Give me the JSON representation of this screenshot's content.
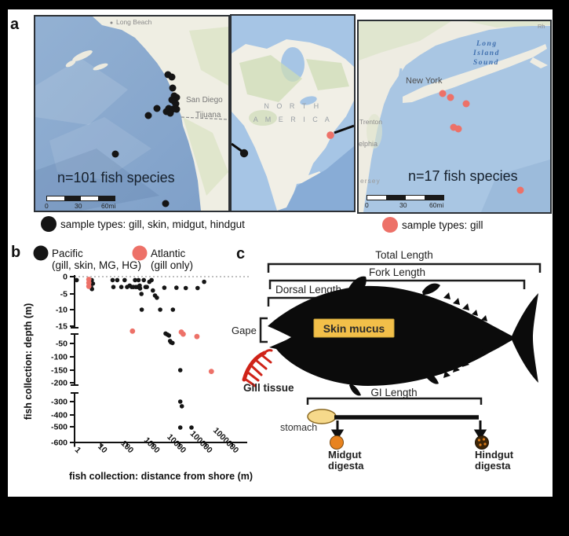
{
  "figure": {
    "panel_a_label": "a",
    "panel_b_label": "b",
    "panel_c_label": "c"
  },
  "maps": {
    "pacific": {
      "annotation": "n=101 fish species",
      "legend_text": "sample types: gill, skin, midgut, hindgut",
      "cities": {
        "long_beach": "Long Beach",
        "san_diego": "San Diego",
        "tijuana": "Tijuana"
      },
      "scale": {
        "zero": "0",
        "mid": "30",
        "end": "60mi"
      },
      "dot_color": "#151515",
      "sample_dots": [
        [
          169,
          74
        ],
        [
          174,
          77
        ],
        [
          175,
          91
        ],
        [
          177,
          101
        ],
        [
          180,
          103
        ],
        [
          174,
          106
        ],
        [
          177,
          108
        ],
        [
          179,
          111
        ],
        [
          170,
          117
        ],
        [
          175,
          118
        ],
        [
          180,
          118
        ],
        [
          167,
          121
        ],
        [
          172,
          123
        ],
        [
          155,
          117
        ],
        [
          144,
          126
        ],
        [
          102,
          175
        ],
        [
          166,
          238
        ]
      ]
    },
    "overview": {
      "label_line1": "N O R T H",
      "label_line2": "A M E R I C A"
    },
    "atlantic": {
      "annotation": "n=17 fish species",
      "legend_text": "sample types: gill",
      "water_label_1": "Long",
      "water_label_2": "Island",
      "water_label_3": "Sound",
      "cities": {
        "new_york": "New York",
        "trenton": "Trenton",
        "philadelphia": "elphia",
        "jersey": "ersey",
        "rhode": "Rh"
      },
      "scale": {
        "zero": "0",
        "mid": "30",
        "end": "60mi"
      },
      "dot_color": "#ed7168",
      "sample_dots": [
        [
          107,
          92
        ],
        [
          117,
          97
        ],
        [
          137,
          105
        ],
        [
          121,
          135
        ],
        [
          127,
          137
        ],
        [
          206,
          215
        ]
      ]
    }
  },
  "chart_data": {
    "type": "scatter",
    "xlabel": "fish collection: distance from shore (m)",
    "ylabel": "fish collection: depth (m)",
    "x_scale": "log",
    "x_ticks": [
      1,
      10,
      100,
      1000,
      10000,
      100000,
      1000000
    ],
    "y_segments": [
      [
        0,
        -5,
        -10,
        -15
      ],
      [
        -50,
        -100,
        -150,
        -200
      ],
      [
        -300,
        -400,
        -500,
        -600
      ]
    ],
    "zero_line": "dotted",
    "legend": [
      {
        "name": "Pacific",
        "sub": "(gill, skin, MG, HG)",
        "color": "#151515"
      },
      {
        "name": "Atlantic",
        "sub": "(gill only)",
        "color": "#ed7168"
      }
    ],
    "series": [
      {
        "name": "Pacific (gill, skin, MG, HG)",
        "color": "#151515",
        "r": 2.8,
        "points": [
          [
            1.2,
            -1
          ],
          [
            3.8,
            -1
          ],
          [
            4.5,
            -1
          ],
          [
            4.2,
            -3
          ],
          [
            4.6,
            -3.6
          ],
          [
            5,
            -2
          ],
          [
            28,
            -1
          ],
          [
            30,
            -3
          ],
          [
            42,
            -1
          ],
          [
            60,
            -3
          ],
          [
            80,
            -1
          ],
          [
            100,
            -3
          ],
          [
            125,
            -2.6
          ],
          [
            150,
            -3
          ],
          [
            175,
            -3
          ],
          [
            200,
            -1
          ],
          [
            215,
            -3
          ],
          [
            250,
            -3
          ],
          [
            270,
            -1
          ],
          [
            300,
            -2.6
          ],
          [
            310,
            -3.4
          ],
          [
            350,
            -5
          ],
          [
            430,
            -1
          ],
          [
            500,
            -3
          ],
          [
            560,
            -3
          ],
          [
            700,
            -1.5
          ],
          [
            850,
            -1
          ],
          [
            950,
            -4
          ],
          [
            1150,
            -5.5
          ],
          [
            1350,
            -6.2
          ],
          [
            360,
            -10
          ],
          [
            1800,
            -10
          ],
          [
            5500,
            -10
          ],
          [
            2600,
            -3.2
          ],
          [
            7500,
            -3.2
          ],
          [
            17000,
            -3.3
          ],
          [
            48000,
            -3.3
          ],
          [
            85000,
            -1.5
          ],
          [
            2900,
            -30
          ],
          [
            3400,
            -32
          ],
          [
            3900,
            -34
          ],
          [
            4300,
            -45
          ],
          [
            4700,
            -48
          ],
          [
            5300,
            -49
          ],
          [
            10500,
            -150
          ],
          [
            10500,
            -300
          ],
          [
            12000,
            -335
          ],
          [
            10500,
            -505
          ],
          [
            28000,
            -505
          ]
        ]
      },
      {
        "name": "Atlantic (gill only)",
        "color": "#ed7168",
        "r": 3.4,
        "points": [
          [
            3.5,
            -0.8
          ],
          [
            3.5,
            -1.8
          ],
          [
            3.5,
            -2.8
          ],
          [
            160,
            -25
          ],
          [
            11500,
            -27
          ],
          [
            13500,
            -31
          ],
          [
            45000,
            -36
          ],
          [
            160000,
            -155
          ]
        ]
      }
    ]
  },
  "diagram": {
    "total_length": "Total Length",
    "fork_length": "Fork Length",
    "dorsal_length": "Dorsal Length",
    "gape": "Gape",
    "skin_mucus": "Skin mucus",
    "gill_tissue": "Gill tissue",
    "gi_length": "GI Length",
    "stomach": "stomach",
    "midgut_line1": "Midgut",
    "midgut_line2": "digesta",
    "hindgut_line1": "Hindgut",
    "hindgut_line2": "digesta",
    "skin_box_color": "#f2bf49",
    "stomach_color": "#f6d98b",
    "midgut_color": "#e8831f",
    "hindgut_color": "#3d2507",
    "gill_color": "#cf2318"
  }
}
